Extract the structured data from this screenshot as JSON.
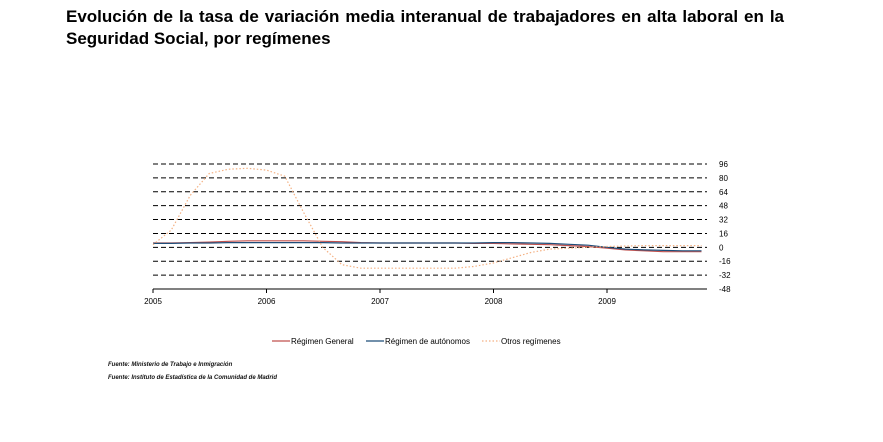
{
  "title": "Evolución de la tasa de variación media interanual de trabajadores en alta laboral en la Seguridad Social, por  regímenes",
  "sources": [
    "Fuente: Ministerio de Trabajo e Inmigración",
    "Fuente: Instituto de Estadística de la Comunidad de Madrid"
  ],
  "chart_data": {
    "type": "line",
    "title": "Evolución de la tasa de variación media interanual de trabajadores en alta laboral en la Seguridad Social, por  regímenes",
    "xlabel": "",
    "ylabel": "",
    "x_ticks": [
      "2005",
      "2006",
      "2007",
      "2008",
      "2009"
    ],
    "y_ticks": [
      96,
      80,
      64,
      48,
      32,
      16,
      0,
      -16,
      -32,
      -48
    ],
    "ylim": [
      -48,
      96
    ],
    "y_axis_position": "right",
    "grid": "horizontal dashed",
    "legend_position": "bottom",
    "x": [
      "2005-01",
      "2005-03",
      "2005-05",
      "2005-07",
      "2005-09",
      "2005-11",
      "2006-01",
      "2006-03",
      "2006-05",
      "2006-07",
      "2006-09",
      "2006-11",
      "2007-01",
      "2007-03",
      "2007-05",
      "2007-07",
      "2007-09",
      "2007-11",
      "2008-01",
      "2008-03",
      "2008-05",
      "2008-07",
      "2008-09",
      "2008-11",
      "2009-01",
      "2009-03",
      "2009-05",
      "2009-07",
      "2009-09",
      "2009-11"
    ],
    "series": [
      {
        "name": "Régimen General",
        "color": "#c0504d",
        "style": "solid",
        "values": [
          5,
          5,
          5.5,
          6,
          7,
          7.5,
          7.5,
          7.5,
          7.5,
          7,
          6.5,
          5.5,
          5,
          5,
          5,
          5,
          5,
          4.5,
          4.5,
          4,
          3.5,
          3,
          2,
          1,
          -1,
          -3,
          -4,
          -5,
          -5,
          -5
        ]
      },
      {
        "name": "Régimen de autónomos",
        "color": "#1f4e79",
        "style": "solid",
        "values": [
          4.5,
          4.5,
          5,
          5,
          5.5,
          5.5,
          5.5,
          5.5,
          5.5,
          5.5,
          5,
          5,
          5,
          5,
          5,
          5,
          5,
          5,
          5.5,
          5.5,
          5,
          4.5,
          3.5,
          2.5,
          0,
          -2,
          -3,
          -3.5,
          -4,
          -4
        ]
      },
      {
        "name": "Otros regímenes",
        "color": "#f4b183",
        "style": "dotted",
        "values": [
          3,
          20,
          60,
          85,
          90,
          91,
          89,
          82,
          40,
          0,
          -20,
          -24,
          -24,
          -24,
          -24,
          -24,
          -24,
          -22,
          -18,
          -12,
          -6,
          -2,
          -1,
          0,
          1,
          1.5,
          2,
          2,
          2,
          2
        ]
      }
    ]
  }
}
